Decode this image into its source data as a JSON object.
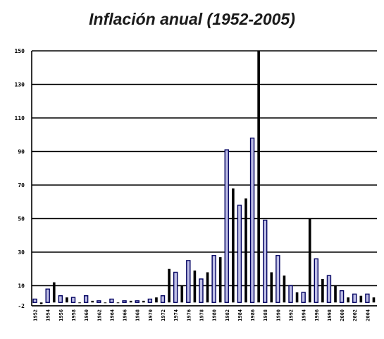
{
  "chart_data": {
    "type": "bar",
    "title": "Inflación anual (1952-2005)",
    "xlabel": "",
    "ylabel": "",
    "ylim": [
      -2,
      150
    ],
    "yticks": [
      -2,
      10,
      30,
      50,
      70,
      90,
      110,
      130,
      150
    ],
    "grid": "horizontal",
    "legend": "none",
    "colors": {
      "even_year_bar": "#000060",
      "even_year_fill": "#bfbfe6",
      "odd_year_bar": "#000000",
      "grid": "#000000"
    },
    "x_tick_labels": [
      "1952",
      "1954",
      "1956",
      "1958",
      "1960",
      "1962",
      "1964",
      "1966",
      "1968",
      "1970",
      "1972",
      "1974",
      "1976",
      "1978",
      "1980",
      "1982",
      "1984",
      "1986",
      "1988",
      "1990",
      "1992",
      "1994",
      "1996",
      "1998",
      "2000",
      "2002",
      "2004"
    ],
    "x": [
      1952,
      1953,
      1954,
      1955,
      1956,
      1957,
      1958,
      1959,
      1960,
      1961,
      1962,
      1963,
      1964,
      1965,
      1966,
      1967,
      1968,
      1969,
      1970,
      1971,
      1972,
      1973,
      1974,
      1975,
      1976,
      1977,
      1978,
      1979,
      1980,
      1981,
      1982,
      1983,
      1984,
      1985,
      1986,
      1987,
      1988,
      1989,
      1990,
      1991,
      1992,
      1993,
      1994,
      1995,
      1996,
      1997,
      1998,
      1999,
      2000,
      2001,
      2002,
      2003,
      2004,
      2005
    ],
    "values": [
      2,
      -1,
      8,
      12,
      4,
      3,
      3,
      0,
      4,
      1,
      1,
      0,
      2,
      0,
      1,
      1,
      1,
      1,
      2,
      3,
      4,
      20,
      18,
      10,
      25,
      19,
      14,
      18,
      28,
      27,
      91,
      68,
      58,
      62,
      98,
      150,
      49,
      18,
      28,
      16,
      10,
      6,
      6,
      50,
      26,
      14,
      16,
      10,
      7,
      3,
      5,
      4,
      5,
      3
    ]
  }
}
